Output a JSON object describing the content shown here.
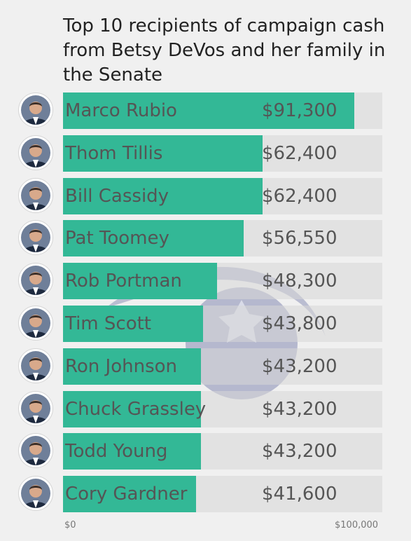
{
  "title": "Top 10 recipients of campaign cash from Betsy DeVos and her family in the Senate",
  "colors": {
    "bar": "#33b896",
    "track": "#d7d7d7",
    "background": "#f0f0f0",
    "text": "#555555"
  },
  "chart_data": {
    "type": "bar",
    "orientation": "horizontal",
    "title": "Top 10 recipients of campaign cash from Betsy DeVos and her family in the Senate",
    "categories": [
      "Marco Rubio",
      "Thom Tillis",
      "Bill Cassidy",
      "Pat Toomey",
      "Rob Portman",
      "Tim Scott",
      "Ron Johnson",
      "Chuck Grassley",
      "Todd Young",
      "Cory Gardner"
    ],
    "values": [
      91300,
      62400,
      62400,
      56550,
      48300,
      43800,
      43200,
      43200,
      43200,
      41600
    ],
    "value_labels": [
      "$91,300",
      "$62,400",
      "$62,400",
      "$56,550",
      "$48,300",
      "$43,800",
      "$43,200",
      "$43,200",
      "$43,200",
      "$41,600"
    ],
    "xlim": [
      0,
      100000
    ],
    "axis_tick_labels": [
      "$0",
      "$100,000"
    ],
    "grid": false
  }
}
